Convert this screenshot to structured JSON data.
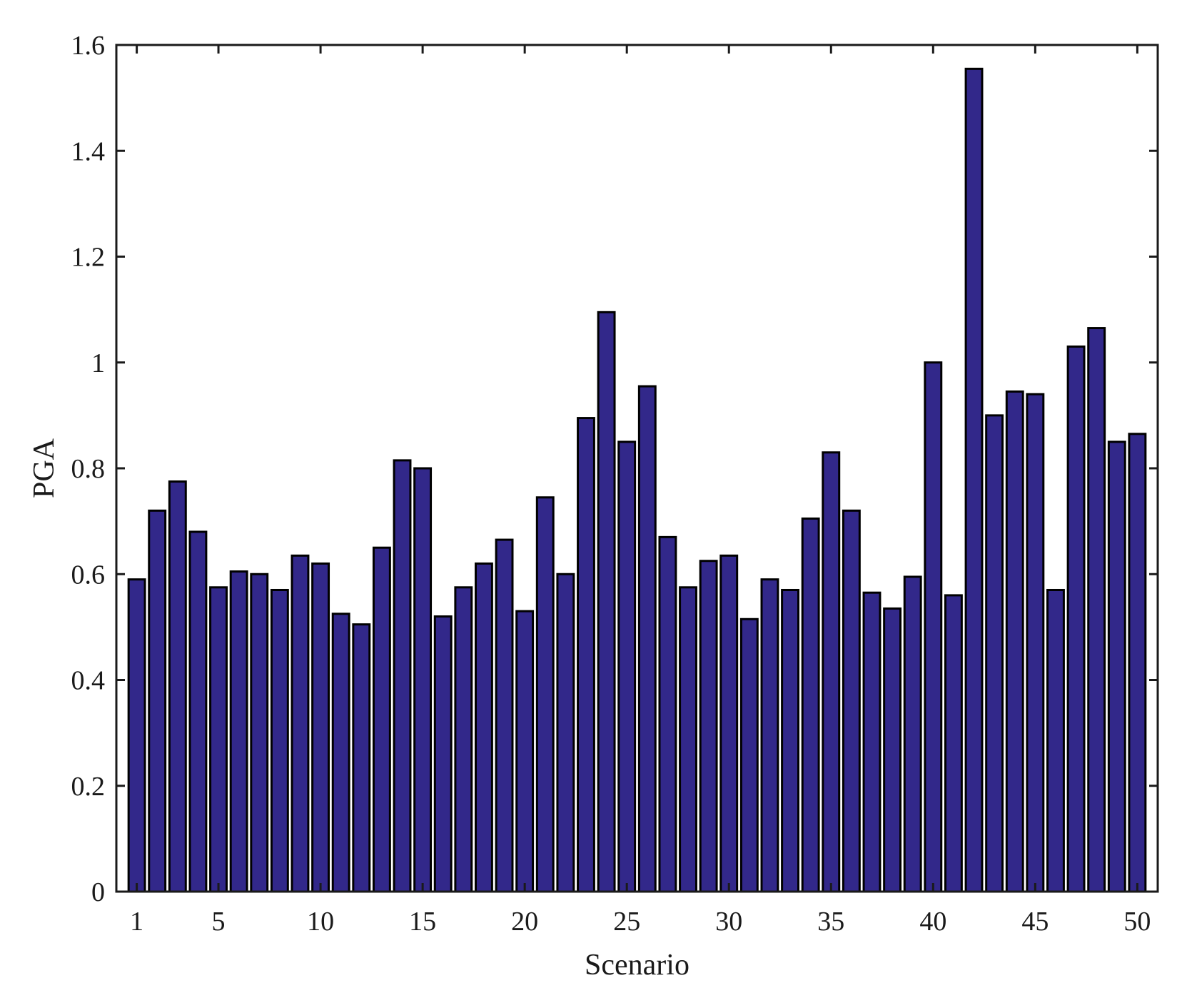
{
  "chart_data": {
    "type": "bar",
    "title": "",
    "xlabel": "Scenario",
    "ylabel": "PGA",
    "ylim": [
      0,
      1.6
    ],
    "xlim": [
      0,
      51
    ],
    "bar_color": "#32288a",
    "edge_color": "#000000",
    "grid": false,
    "x_ticks": [
      1,
      5,
      10,
      15,
      20,
      25,
      30,
      35,
      40,
      45,
      50
    ],
    "x_tick_labels": [
      "1",
      "5",
      "10",
      "15",
      "20",
      "25",
      "30",
      "35",
      "40",
      "45",
      "50"
    ],
    "y_ticks": [
      0,
      0.2,
      0.4,
      0.6,
      0.8,
      1.0,
      1.2,
      1.4,
      1.6
    ],
    "y_tick_labels": [
      "0",
      "0.2",
      "0.4",
      "0.6",
      "0.8",
      "1",
      "1.2",
      "1.4",
      "1.6"
    ],
    "categories": [
      1,
      2,
      3,
      4,
      5,
      6,
      7,
      8,
      9,
      10,
      11,
      12,
      13,
      14,
      15,
      16,
      17,
      18,
      19,
      20,
      21,
      22,
      23,
      24,
      25,
      26,
      27,
      28,
      29,
      30,
      31,
      32,
      33,
      34,
      35,
      36,
      37,
      38,
      39,
      40,
      41,
      42,
      43,
      44,
      45,
      46,
      47,
      48,
      49,
      50
    ],
    "values": [
      0.59,
      0.72,
      0.775,
      0.68,
      0.575,
      0.605,
      0.6,
      0.57,
      0.635,
      0.62,
      0.525,
      0.505,
      0.65,
      0.815,
      0.8,
      0.52,
      0.575,
      0.62,
      0.665,
      0.53,
      0.745,
      0.6,
      0.895,
      1.095,
      0.85,
      0.955,
      0.67,
      0.575,
      0.625,
      0.635,
      0.515,
      0.59,
      0.57,
      0.705,
      0.83,
      0.72,
      0.565,
      0.535,
      0.595,
      1.0,
      0.56,
      1.555,
      0.9,
      0.945,
      0.94,
      0.57,
      1.03,
      1.065,
      0.85,
      0.865
    ]
  }
}
